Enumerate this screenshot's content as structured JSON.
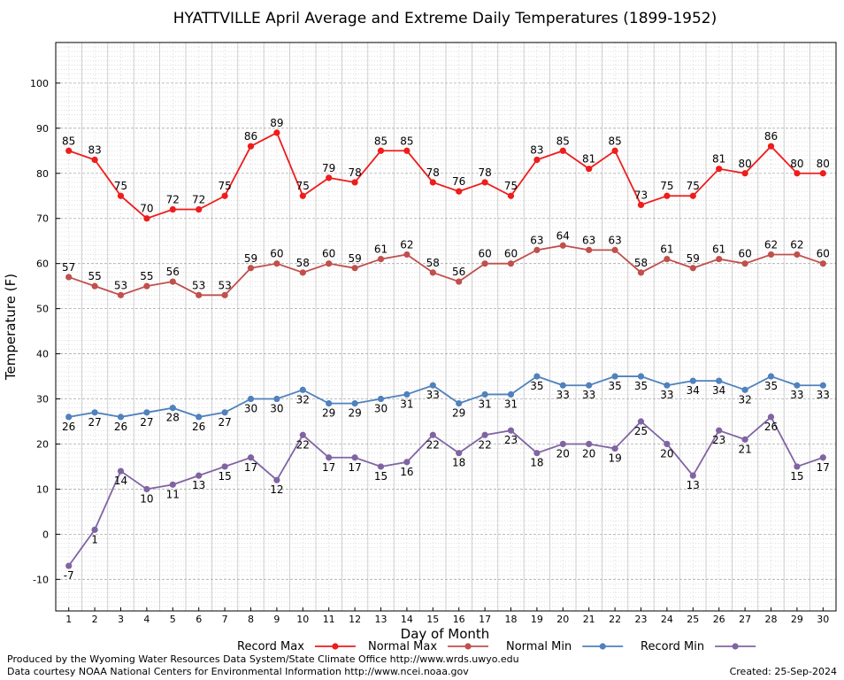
{
  "chart_data": {
    "type": "line",
    "title": "HYATTVILLE April Average and Extreme Daily Temperatures (1899-1952)",
    "xlabel": "Day of Month",
    "ylabel": "Temperature (F)",
    "x": [
      1,
      2,
      3,
      4,
      5,
      6,
      7,
      8,
      9,
      10,
      11,
      12,
      13,
      14,
      15,
      16,
      17,
      18,
      19,
      20,
      21,
      22,
      23,
      24,
      25,
      26,
      27,
      28,
      29,
      30
    ],
    "ylim": [
      -17,
      109
    ],
    "yticks": [
      -10,
      0,
      10,
      20,
      30,
      40,
      50,
      60,
      70,
      80,
      90,
      100
    ],
    "grid": true,
    "legend_position": "bottom",
    "series": [
      {
        "name": "Record Max",
        "color": "#ee1c1c",
        "values": [
          85,
          83,
          75,
          70,
          72,
          72,
          75,
          86,
          89,
          75,
          79,
          78,
          85,
          85,
          78,
          76,
          78,
          75,
          83,
          85,
          81,
          85,
          73,
          75,
          75,
          81,
          80,
          86,
          80,
          80
        ]
      },
      {
        "name": "Normal Max",
        "color": "#c0504d",
        "values": [
          57,
          55,
          53,
          55,
          56,
          53,
          53,
          59,
          60,
          58,
          60,
          59,
          61,
          62,
          58,
          56,
          60,
          60,
          63,
          64,
          63,
          63,
          58,
          61,
          59,
          61,
          60,
          62,
          62,
          60
        ]
      },
      {
        "name": "Normal Min",
        "color": "#4f81bd",
        "values": [
          26,
          27,
          26,
          27,
          28,
          26,
          27,
          30,
          30,
          32,
          29,
          29,
          30,
          31,
          33,
          29,
          31,
          31,
          35,
          33,
          33,
          35,
          35,
          33,
          34,
          34,
          32,
          35,
          33,
          33
        ]
      },
      {
        "name": "Record Min",
        "color": "#8064a2",
        "values": [
          -7,
          1,
          14,
          10,
          11,
          13,
          15,
          17,
          12,
          22,
          17,
          17,
          15,
          16,
          22,
          18,
          22,
          23,
          18,
          20,
          20,
          19,
          25,
          20,
          13,
          23,
          21,
          26,
          15,
          17
        ]
      }
    ]
  },
  "footer": {
    "produced_by": "Produced by the Wyoming Water Resources Data System/State Climate Office http://www.wrds.uwyo.edu",
    "courtesy": "Data courtesy NOAA National Centers for Environmental Information http://www.ncei.noaa.gov",
    "created": "Created: 25-Sep-2024"
  }
}
